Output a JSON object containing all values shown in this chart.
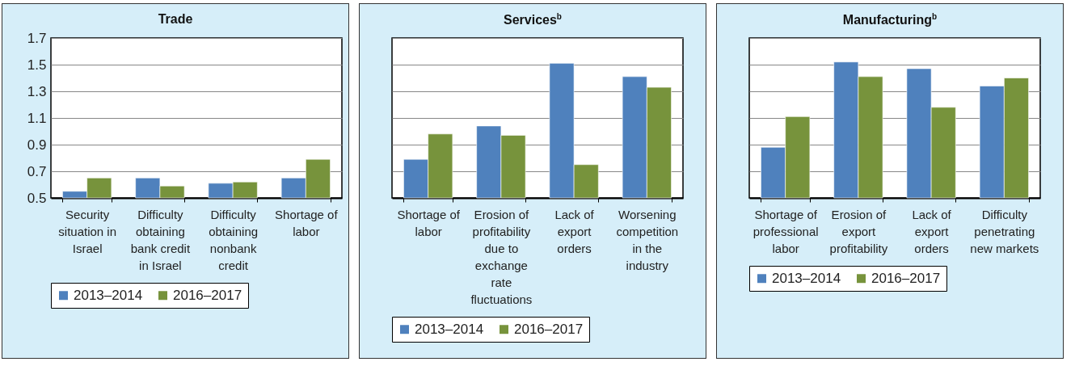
{
  "chart_data": [
    {
      "type": "bar",
      "title": "Trade",
      "categories": [
        "Security situation in Israel",
        "Difficulty obtaining bank credit in Israel",
        "Difficulty obtaining nonbank credit",
        "Shortage of labor"
      ],
      "series": [
        {
          "name": "2013–2014",
          "color": "#4f81bd",
          "values": [
            0.55,
            0.65,
            0.61,
            0.65
          ]
        },
        {
          "name": "2016–2017",
          "color": "#77933c",
          "values": [
            0.65,
            0.59,
            0.62,
            0.79
          ]
        }
      ],
      "ylim": [
        0.5,
        1.7
      ],
      "yticks": [
        0.5,
        0.7,
        0.9,
        1.1,
        1.3,
        1.5,
        1.7
      ],
      "grid": "y",
      "legend": "bottom"
    },
    {
      "type": "bar",
      "title": "Services$^{b}$",
      "categories": [
        "Shortage of labor",
        "Erosion of profitability due to exchange rate fluctuations",
        "Lack of export orders",
        "Worsening competition in the industry"
      ],
      "series": [
        {
          "name": "2013–2014",
          "color": "#4f81bd",
          "values": [
            0.79,
            1.04,
            1.51,
            1.41
          ]
        },
        {
          "name": "2016–2017",
          "color": "#77933c",
          "values": [
            0.98,
            0.97,
            0.75,
            1.33
          ]
        }
      ],
      "ylim": [
        0.5,
        1.7
      ],
      "yticks": [
        0.5,
        0.7,
        0.9,
        1.1,
        1.3,
        1.5,
        1.7
      ],
      "grid": "y",
      "legend": "bottom",
      "tick_labels": "x"
    },
    {
      "type": "bar",
      "title": "Manufacturing$^{b}$",
      "categories": [
        "Shortage of professional labor",
        "Erosion of export profitability",
        "Lack of export orders",
        "Difficulty penetrating new markets"
      ],
      "series": [
        {
          "name": "2013–2014",
          "color": "#4f81bd",
          "values": [
            0.88,
            1.52,
            1.47,
            1.34
          ]
        },
        {
          "name": "2016–2017",
          "color": "#77933c",
          "values": [
            1.11,
            1.41,
            1.18,
            1.4
          ]
        }
      ],
      "ylim": [
        0.5,
        1.7
      ],
      "yticks": [
        0.5,
        0.7,
        0.9,
        1.1,
        1.3,
        1.5,
        1.7
      ],
      "grid": "y",
      "legend": "bottom",
      "tick_labels": "x"
    }
  ]
}
